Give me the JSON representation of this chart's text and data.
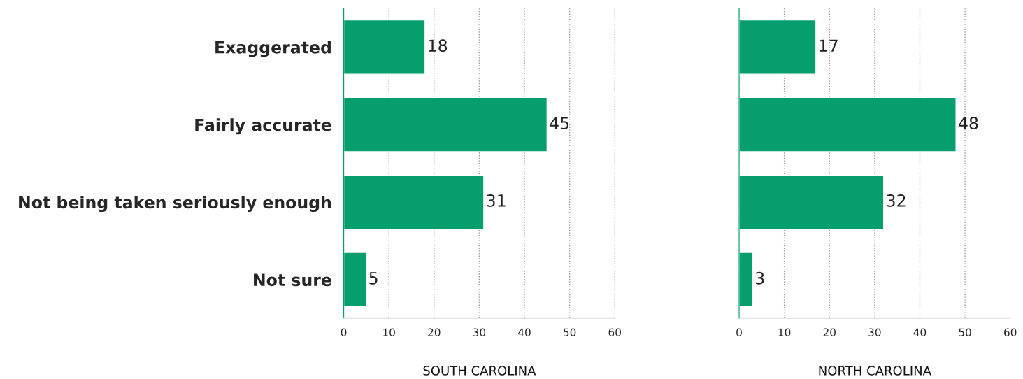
{
  "chart_data": [
    {
      "type": "bar",
      "orientation": "horizontal",
      "xlabel": "SOUTH CAROLINA",
      "categories": [
        "Exaggerated",
        "Fairly accurate",
        "Not being taken seriously enough",
        "Not sure"
      ],
      "values": [
        18,
        45,
        31,
        5
      ],
      "color": "#079e6e",
      "xlim": [
        0,
        60
      ],
      "xticks": [
        0,
        10,
        20,
        30,
        40,
        50,
        60
      ],
      "grid": "x",
      "data_labels": true
    },
    {
      "type": "bar",
      "orientation": "horizontal",
      "xlabel": "NORTH CAROLINA",
      "values": [
        17,
        48,
        32,
        3
      ],
      "color": "#079e6e",
      "xlim": [
        0,
        60
      ],
      "xticks": [
        0,
        10,
        20,
        30,
        40,
        50,
        60
      ],
      "grid": "x",
      "data_labels": true,
      "tick_labels": "x"
    }
  ]
}
